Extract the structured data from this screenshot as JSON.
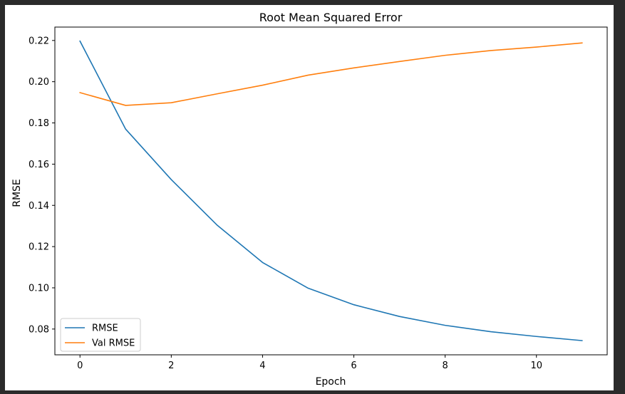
{
  "chart_data": {
    "type": "line",
    "title": "Root Mean Squared Error",
    "xlabel": "Epoch",
    "ylabel": "RMSE",
    "x": [
      0,
      1,
      2,
      3,
      4,
      5,
      6,
      7,
      8,
      9,
      10,
      11
    ],
    "xlim": [
      -0.55,
      11.55
    ],
    "ylim": [
      0.0675,
      0.2265
    ],
    "xticks": [
      0,
      2,
      4,
      6,
      8,
      10
    ],
    "xtick_labels": [
      "0",
      "2",
      "4",
      "6",
      "8",
      "10"
    ],
    "yticks": [
      0.08,
      0.1,
      0.12,
      0.14,
      0.16,
      0.18,
      0.2,
      0.22
    ],
    "ytick_labels": [
      "0.08",
      "0.10",
      "0.12",
      "0.14",
      "0.16",
      "0.18",
      "0.20",
      "0.22"
    ],
    "grid": false,
    "legend_position": "lower-left",
    "series": [
      {
        "name": "RMSE",
        "color": "#1f77b4",
        "values": [
          0.2197,
          0.177,
          0.1525,
          0.1305,
          0.1123,
          0.0998,
          0.0918,
          0.0861,
          0.0818,
          0.0787,
          0.0764,
          0.0744
        ]
      },
      {
        "name": "Val RMSE",
        "color": "#ff7f0e",
        "values": [
          0.1947,
          0.1885,
          0.1898,
          0.1941,
          0.1983,
          0.2032,
          0.2067,
          0.2098,
          0.2128,
          0.2151,
          0.2168,
          0.2188
        ]
      }
    ]
  }
}
